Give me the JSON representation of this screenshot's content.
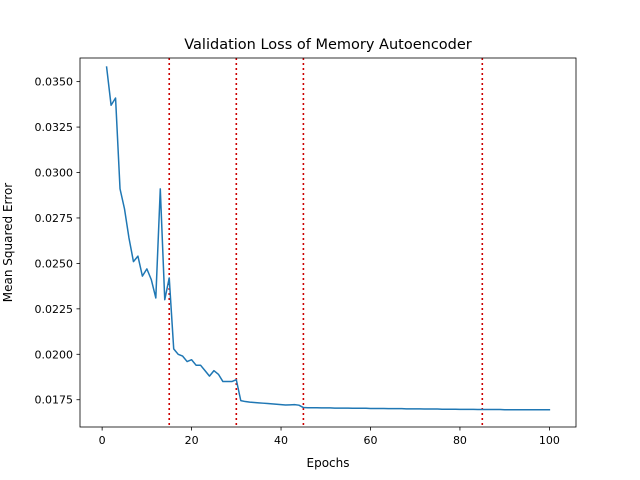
{
  "chart_data": {
    "type": "line",
    "title": "Validation Loss of Memory Autoencoder",
    "xlabel": "Epochs",
    "ylabel": "Mean Squared Error",
    "xlim": [
      -4.95,
      105.95
    ],
    "ylim": [
      0.016,
      0.0363
    ],
    "xticks": [
      0,
      20,
      40,
      60,
      80,
      100
    ],
    "yticks": [
      0.0175,
      0.02,
      0.0225,
      0.025,
      0.0275,
      0.03,
      0.0325,
      0.035
    ],
    "ytick_labels": [
      "0.0175",
      "0.0200",
      "0.0225",
      "0.0250",
      "0.0275",
      "0.0300",
      "0.0325",
      "0.0350"
    ],
    "xtick_labels": [
      "0",
      "20",
      "40",
      "60",
      "80",
      "100"
    ],
    "grid": false,
    "legend": "none",
    "colors": {
      "series": "#1f77b4",
      "vline": "#cc0000"
    },
    "vlines": [
      15,
      30,
      45,
      85
    ],
    "series": [
      {
        "x": [
          1,
          2,
          3,
          4,
          5,
          6,
          7,
          8,
          9,
          10,
          11,
          12,
          13,
          14,
          15,
          16,
          17,
          18,
          19,
          20,
          21,
          22,
          23,
          24,
          25,
          26,
          27,
          28,
          29,
          30,
          31,
          32,
          33,
          34,
          35,
          36,
          37,
          38,
          39,
          40,
          41,
          42,
          43,
          44,
          45,
          46,
          47,
          48,
          49,
          50,
          51,
          52,
          53,
          54,
          55,
          56,
          57,
          58,
          59,
          60,
          61,
          62,
          63,
          64,
          65,
          66,
          67,
          68,
          69,
          70,
          71,
          72,
          73,
          74,
          75,
          76,
          77,
          78,
          79,
          80,
          81,
          82,
          83,
          84,
          85,
          86,
          87,
          88,
          89,
          90,
          91,
          92,
          93,
          94,
          95,
          96,
          97,
          98,
          99,
          100
        ],
        "values": [
          0.0358,
          0.0337,
          0.0341,
          0.0291,
          0.028,
          0.0264,
          0.0251,
          0.0254,
          0.0243,
          0.0247,
          0.0241,
          0.0231,
          0.0291,
          0.023,
          0.0242,
          0.0203,
          0.02,
          0.0199,
          0.0196,
          0.0197,
          0.0194,
          0.0194,
          0.0191,
          0.0188,
          0.0191,
          0.0189,
          0.0185,
          0.0185,
          0.0185,
          0.0186,
          0.01745,
          0.0174,
          0.01737,
          0.01735,
          0.01733,
          0.01731,
          0.01729,
          0.01727,
          0.01725,
          0.01723,
          0.01721,
          0.01722,
          0.01723,
          0.0172,
          0.01707,
          0.01706,
          0.01706,
          0.01706,
          0.01705,
          0.01705,
          0.01705,
          0.01704,
          0.01704,
          0.01704,
          0.01704,
          0.01703,
          0.01703,
          0.01703,
          0.01703,
          0.01702,
          0.01702,
          0.01702,
          0.01702,
          0.01701,
          0.01701,
          0.01701,
          0.01701,
          0.017,
          0.017,
          0.017,
          0.017,
          0.01699,
          0.01699,
          0.01699,
          0.01699,
          0.01698,
          0.01698,
          0.01698,
          0.01698,
          0.01697,
          0.01697,
          0.01697,
          0.01697,
          0.01696,
          0.01696,
          0.01696,
          0.01696,
          0.01696,
          0.01696,
          0.01695,
          0.01695,
          0.01695,
          0.01695,
          0.01695,
          0.01695,
          0.01695,
          0.01695,
          0.01695,
          0.01695,
          0.01695
        ]
      }
    ]
  }
}
